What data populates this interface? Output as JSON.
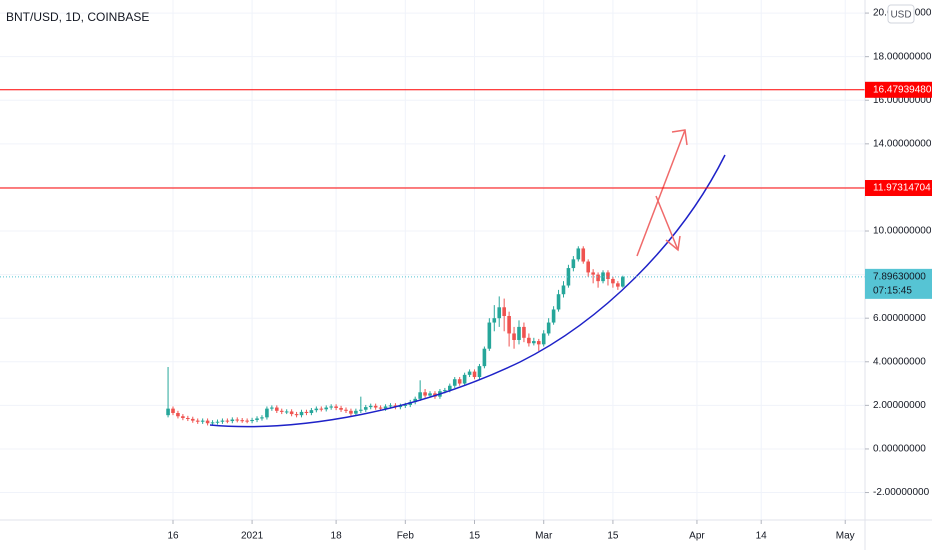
{
  "chart_data": {
    "type": "candlestick",
    "title": "BNT/USD, 1D, COINBASE",
    "currency": "USD",
    "up_color": "#26a69a",
    "down_color": "#ef5350",
    "grid": true,
    "xlim": [
      "2020-11-11",
      "2021-05-05"
    ],
    "xticks": [
      {
        "value": "2020-12-16",
        "label": "16"
      },
      {
        "value": "2021-01-01",
        "label": "2021"
      },
      {
        "value": "2021-01-18",
        "label": "18"
      },
      {
        "value": "2021-02-01",
        "label": "Feb"
      },
      {
        "value": "2021-02-15",
        "label": "15"
      },
      {
        "value": "2021-03-01",
        "label": "Mar"
      },
      {
        "value": "2021-03-15",
        "label": "15"
      },
      {
        "value": "2021-04-01",
        "label": "Apr"
      },
      {
        "value": "2021-04-14",
        "label": "14"
      },
      {
        "value": "2021-05-01",
        "label": "May"
      }
    ],
    "ylim": [
      -3.26,
      20.6
    ],
    "yticks": [
      {
        "value": -2,
        "label": "-2.00000000"
      },
      {
        "value": 0,
        "label": "0.00000000"
      },
      {
        "value": 2,
        "label": "2.00000000"
      },
      {
        "value": 4,
        "label": "4.00000000"
      },
      {
        "value": 6,
        "label": "6.00000000"
      },
      {
        "value": 8,
        "label": "8.00000000"
      },
      {
        "value": 10,
        "label": "10.00000000"
      },
      {
        "value": 12,
        "label": "12.00000000"
      },
      {
        "value": 14,
        "label": "14.00000000"
      },
      {
        "value": 16,
        "label": "16.00000000"
      },
      {
        "value": 18,
        "label": "18.00000000"
      },
      {
        "value": 20,
        "label": "20.00000000"
      }
    ],
    "hlines": [
      {
        "value": 16.4793948,
        "label": "16.47939480",
        "color": "#ff0000"
      },
      {
        "value": 11.97314704,
        "label": "11.97314704",
        "color": "#ff0000"
      }
    ],
    "last_price": {
      "value": 7.8963,
      "label": "7.89630000",
      "countdown": "07:15:45",
      "color": "#56c4d4"
    },
    "x": [
      "2020-12-15",
      "2020-12-16",
      "2020-12-17",
      "2020-12-18",
      "2020-12-19",
      "2020-12-20",
      "2020-12-21",
      "2020-12-22",
      "2020-12-23",
      "2020-12-24",
      "2020-12-25",
      "2020-12-26",
      "2020-12-27",
      "2020-12-28",
      "2020-12-29",
      "2020-12-30",
      "2020-12-31",
      "2021-01-01",
      "2021-01-02",
      "2021-01-03",
      "2021-01-04",
      "2021-01-05",
      "2021-01-06",
      "2021-01-07",
      "2021-01-08",
      "2021-01-09",
      "2021-01-10",
      "2021-01-11",
      "2021-01-12",
      "2021-01-13",
      "2021-01-14",
      "2021-01-15",
      "2021-01-16",
      "2021-01-17",
      "2021-01-18",
      "2021-01-19",
      "2021-01-20",
      "2021-01-21",
      "2021-01-22",
      "2021-01-23",
      "2021-01-24",
      "2021-01-25",
      "2021-01-26",
      "2021-01-27",
      "2021-01-28",
      "2021-01-29",
      "2021-01-30",
      "2021-01-31",
      "2021-02-01",
      "2021-02-02",
      "2021-02-03",
      "2021-02-04",
      "2021-02-05",
      "2021-02-06",
      "2021-02-07",
      "2021-02-08",
      "2021-02-09",
      "2021-02-10",
      "2021-02-11",
      "2021-02-12",
      "2021-02-13",
      "2021-02-14",
      "2021-02-15",
      "2021-02-16",
      "2021-02-17",
      "2021-02-18",
      "2021-02-19",
      "2021-02-20",
      "2021-02-21",
      "2021-02-22",
      "2021-02-23",
      "2021-02-24",
      "2021-02-25",
      "2021-02-26",
      "2021-02-27",
      "2021-02-28",
      "2021-03-01",
      "2021-03-02",
      "2021-03-03",
      "2021-03-04",
      "2021-03-05",
      "2021-03-06",
      "2021-03-07",
      "2021-03-08",
      "2021-03-09",
      "2021-03-10",
      "2021-03-11",
      "2021-03-12",
      "2021-03-13",
      "2021-03-14",
      "2021-03-15",
      "2021-03-16",
      "2021-03-17"
    ],
    "open": [
      1.55,
      1.85,
      1.65,
      1.5,
      1.42,
      1.38,
      1.3,
      1.25,
      1.3,
      1.18,
      1.22,
      1.25,
      1.3,
      1.28,
      1.35,
      1.32,
      1.3,
      1.28,
      1.33,
      1.4,
      1.45,
      1.85,
      1.9,
      1.75,
      1.7,
      1.72,
      1.6,
      1.55,
      1.7,
      1.65,
      1.78,
      1.85,
      1.82,
      1.9,
      1.95,
      1.88,
      1.8,
      1.75,
      1.62,
      1.75,
      1.8,
      1.92,
      1.98,
      1.9,
      1.85,
      1.95,
      2.0,
      1.92,
      1.98,
      2.02,
      2.15,
      2.3,
      2.6,
      2.45,
      2.55,
      2.4,
      2.65,
      2.7,
      2.9,
      3.2,
      3.0,
      3.4,
      3.55,
      3.3,
      3.8,
      4.6,
      5.8,
      6.0,
      6.5,
      6.1,
      5.3,
      5.0,
      5.6,
      5.1,
      4.85,
      4.95,
      4.8,
      5.3,
      5.8,
      6.4,
      7.1,
      7.5,
      8.3,
      8.7,
      9.2,
      8.6,
      8.1,
      8.0,
      7.7,
      8.1,
      7.8,
      7.6,
      7.45
    ],
    "high": [
      3.76,
      1.95,
      1.75,
      1.6,
      1.52,
      1.48,
      1.4,
      1.4,
      1.4,
      1.32,
      1.35,
      1.4,
      1.4,
      1.45,
      1.45,
      1.42,
      1.4,
      1.43,
      1.5,
      1.55,
      1.95,
      2.0,
      2.0,
      1.85,
      1.82,
      1.82,
      1.7,
      1.8,
      1.8,
      1.88,
      1.95,
      1.95,
      2.0,
      2.05,
      2.05,
      1.98,
      1.9,
      1.85,
      1.85,
      2.4,
      2.02,
      2.08,
      2.08,
      2.0,
      2.05,
      2.1,
      2.1,
      2.08,
      2.12,
      2.25,
      2.4,
      3.15,
      2.75,
      2.65,
      2.65,
      2.75,
      2.8,
      3.0,
      3.3,
      3.3,
      3.5,
      3.65,
      3.65,
      3.9,
      4.7,
      6.0,
      6.6,
      7.0,
      6.9,
      6.3,
      5.6,
      5.9,
      5.8,
      5.3,
      5.1,
      5.05,
      5.45,
      6.0,
      6.55,
      7.3,
      7.7,
      8.45,
      8.85,
      9.3,
      9.3,
      8.7,
      8.25,
      8.1,
      8.2,
      8.2,
      7.9,
      7.7,
      7.95
    ],
    "low": [
      1.45,
      1.55,
      1.4,
      1.32,
      1.28,
      1.2,
      1.15,
      1.15,
      1.08,
      1.08,
      1.12,
      1.15,
      1.18,
      1.18,
      1.22,
      1.2,
      1.18,
      1.18,
      1.23,
      1.3,
      1.35,
      1.75,
      1.65,
      1.6,
      1.6,
      1.5,
      1.45,
      1.45,
      1.55,
      1.55,
      1.68,
      1.72,
      1.72,
      1.8,
      1.78,
      1.7,
      1.65,
      1.52,
      1.52,
      1.65,
      1.7,
      1.82,
      1.8,
      1.75,
      1.75,
      1.85,
      1.82,
      1.82,
      1.88,
      1.92,
      2.05,
      2.2,
      2.35,
      2.35,
      2.3,
      2.3,
      2.55,
      2.6,
      2.8,
      2.9,
      2.9,
      3.3,
      3.2,
      3.2,
      3.7,
      4.5,
      5.4,
      5.6,
      5.4,
      4.7,
      4.6,
      4.8,
      4.9,
      4.7,
      4.75,
      4.5,
      4.7,
      5.2,
      5.7,
      6.3,
      6.95,
      7.4,
      8.15,
      8.6,
      8.5,
      7.9,
      7.6,
      7.4,
      7.6,
      7.5,
      7.4,
      7.3,
      7.4
    ],
    "close": [
      1.85,
      1.65,
      1.5,
      1.42,
      1.38,
      1.3,
      1.25,
      1.3,
      1.18,
      1.22,
      1.25,
      1.3,
      1.28,
      1.35,
      1.32,
      1.3,
      1.28,
      1.33,
      1.4,
      1.45,
      1.85,
      1.9,
      1.75,
      1.7,
      1.72,
      1.6,
      1.55,
      1.7,
      1.65,
      1.78,
      1.85,
      1.82,
      1.9,
      1.95,
      1.88,
      1.8,
      1.75,
      1.62,
      1.75,
      1.8,
      1.92,
      1.98,
      1.9,
      1.85,
      1.95,
      2.0,
      1.92,
      1.98,
      2.02,
      2.15,
      2.3,
      2.6,
      2.45,
      2.55,
      2.4,
      2.65,
      2.7,
      2.9,
      3.2,
      3.0,
      3.4,
      3.55,
      3.3,
      3.8,
      4.6,
      5.8,
      6.0,
      6.5,
      6.1,
      5.3,
      5.0,
      5.6,
      5.1,
      4.85,
      4.95,
      4.8,
      5.3,
      5.8,
      6.4,
      7.1,
      7.5,
      8.3,
      8.7,
      9.2,
      8.6,
      8.1,
      8.0,
      7.7,
      8.1,
      7.8,
      7.6,
      7.45,
      7.9
    ]
  }
}
